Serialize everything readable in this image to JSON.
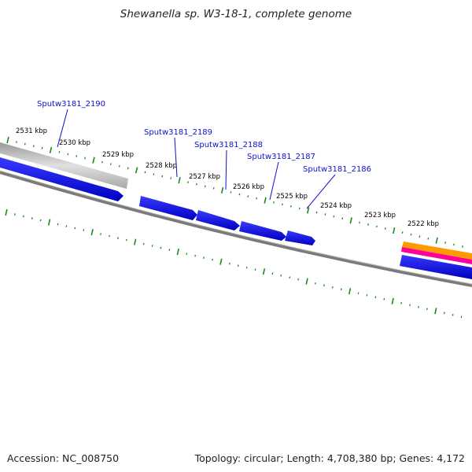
{
  "title": "Shewanella sp. W3-18-1, complete genome",
  "footer": {
    "accession": "Accession: NC_008750",
    "summary": "Topology: circular; Length: 4,708,380 bp; Genes: 4,172"
  },
  "colors": {
    "background": "#ffffff",
    "gene": "#0000e6",
    "tick": "#1a8a1a",
    "backbone": "#7a7a7a",
    "gene_label": "#1010cc",
    "track_orange": "#ff9900",
    "track_magenta": "#ff0099",
    "track_gray": "#b8b8b8"
  },
  "kbp_labels": [
    "2531 kbp",
    "2530 kbp",
    "2529 kbp",
    "2528 kbp",
    "2527 kbp",
    "2526 kbp",
    "2525 kbp",
    "2524 kbp",
    "2523 kbp",
    "2522 kbp"
  ],
  "genes": [
    {
      "name": "Sputw3181_2190"
    },
    {
      "name": "Sputw3181_2189"
    },
    {
      "name": "Sputw3181_2188"
    },
    {
      "name": "Sputw3181_2187"
    },
    {
      "name": "Sputw3181_2186"
    }
  ]
}
